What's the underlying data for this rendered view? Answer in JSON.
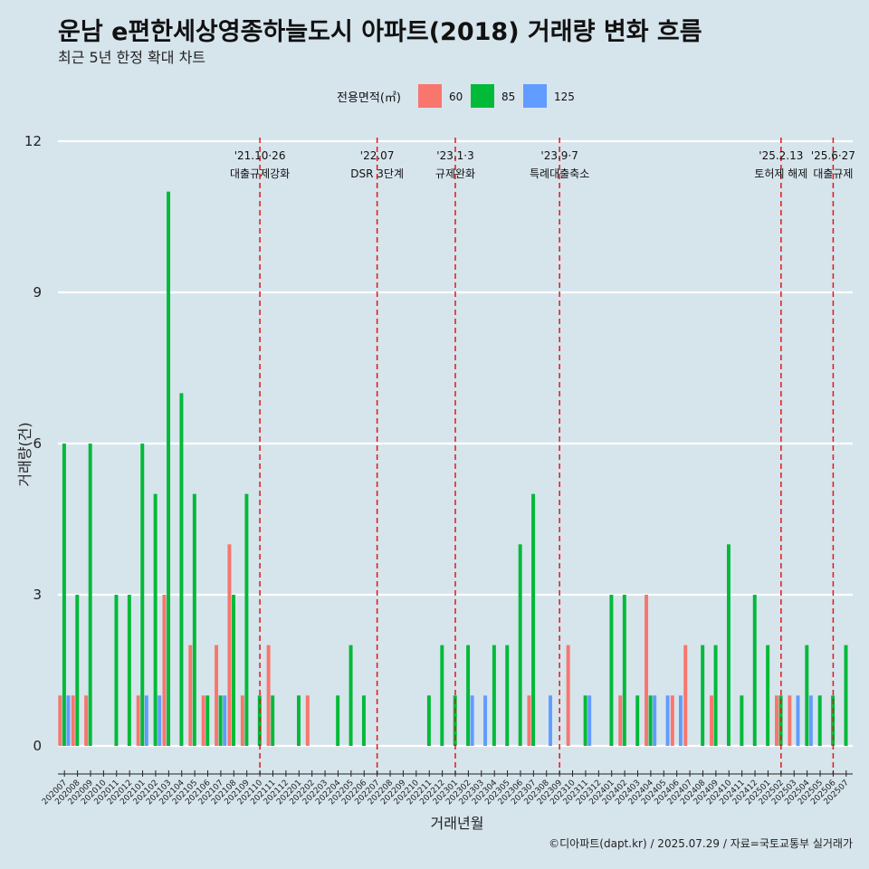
{
  "chart_data": {
    "type": "bar",
    "title": "운남 e편한세상영종하늘도시 아파트(2018) 거래량 변화 흐름",
    "subtitle": "최근 5년 한정 확대 차트",
    "xlabel": "거래년월",
    "ylabel": "거래량(건)",
    "ylim": [
      0,
      12
    ],
    "yticks": [
      0,
      3,
      6,
      9,
      12
    ],
    "grid": "horizontal",
    "legend": {
      "title": "전용면적(㎡)",
      "position": "top"
    },
    "caption": "©디아파트(dapt.kr) / 2025.07.29 / 자료=국토교통부 실거래가",
    "categories": [
      "202007",
      "202008",
      "202009",
      "202010",
      "202011",
      "202012",
      "202101",
      "202102",
      "202103",
      "202104",
      "202105",
      "202106",
      "202107",
      "202108",
      "202109",
      "202110",
      "202111",
      "202112",
      "202201",
      "202202",
      "202203",
      "202204",
      "202205",
      "202206",
      "202207",
      "202208",
      "202209",
      "202210",
      "202211",
      "202212",
      "202301",
      "202302",
      "202303",
      "202304",
      "202305",
      "202306",
      "202307",
      "202308",
      "202309",
      "202310",
      "202311",
      "202312",
      "202401",
      "202402",
      "202403",
      "202404",
      "202405",
      "202406",
      "202407",
      "202408",
      "202409",
      "202410",
      "202411",
      "202412",
      "202501",
      "202502",
      "202503",
      "202504",
      "202505",
      "202506",
      "202507"
    ],
    "series": [
      {
        "name": "60",
        "color": "#f8766d",
        "values": [
          1,
          1,
          1,
          0,
          0,
          0,
          1,
          0,
          3,
          0,
          2,
          1,
          2,
          4,
          1,
          0,
          2,
          0,
          0,
          1,
          0,
          0,
          0,
          0,
          0,
          0,
          0,
          0,
          0,
          0,
          0,
          0,
          0,
          0,
          0,
          0,
          1,
          0,
          0,
          2,
          0,
          0,
          0,
          1,
          0,
          3,
          0,
          1,
          2,
          0,
          1,
          0,
          0,
          0,
          0,
          1,
          1,
          0,
          0,
          0,
          0
        ]
      },
      {
        "name": "85",
        "color": "#00ba38",
        "values": [
          6,
          3,
          6,
          0,
          3,
          3,
          6,
          5,
          11,
          7,
          5,
          1,
          1,
          3,
          5,
          1,
          1,
          0,
          1,
          0,
          0,
          1,
          2,
          1,
          0,
          0,
          0,
          0,
          1,
          2,
          1,
          2,
          0,
          2,
          2,
          4,
          5,
          0,
          0,
          0,
          1,
          0,
          3,
          3,
          1,
          1,
          0,
          0,
          0,
          2,
          2,
          4,
          1,
          3,
          2,
          1,
          0,
          2,
          1,
          1,
          2
        ]
      },
      {
        "name": "125",
        "color": "#619cff",
        "values": [
          1,
          0,
          0,
          0,
          0,
          0,
          1,
          1,
          0,
          0,
          0,
          0,
          1,
          0,
          0,
          0,
          0,
          0,
          0,
          0,
          0,
          0,
          0,
          0,
          0,
          0,
          0,
          0,
          0,
          0,
          0,
          1,
          1,
          0,
          0,
          0,
          0,
          1,
          0,
          0,
          1,
          0,
          0,
          0,
          0,
          1,
          1,
          1,
          0,
          0,
          0,
          0,
          0,
          0,
          0,
          0,
          1,
          1,
          0,
          0,
          0
        ]
      }
    ],
    "annotations": [
      {
        "category": "202110",
        "date": "'21.10·26",
        "label": "대출규제강화"
      },
      {
        "category": "202207",
        "date": "'22.07",
        "label": "DSR 3단계"
      },
      {
        "category": "202301",
        "date": "'23.1·3",
        "label": "규제완화"
      },
      {
        "category": "202309",
        "date": "'23.9·7",
        "label": "특례대출축소"
      },
      {
        "category": "202502",
        "date": "'25.2.13",
        "label": "토허제 해제"
      },
      {
        "category": "202506",
        "date": "'25.6·27",
        "label": "대출규제"
      }
    ]
  }
}
